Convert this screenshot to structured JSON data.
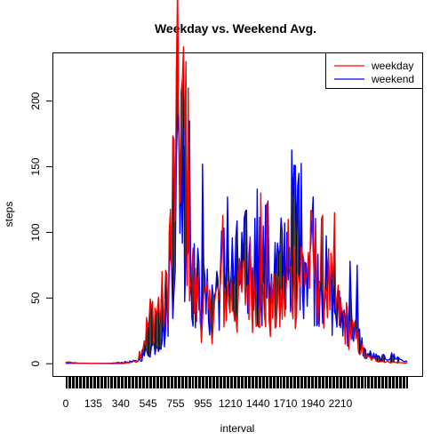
{
  "chart_data": {
    "type": "line",
    "title": "Weekday vs. Weekend Avg.",
    "xlabel": "interval",
    "ylabel": "steps",
    "ylim": [
      -8,
      235
    ],
    "y_ticks": [
      0,
      50,
      100,
      150,
      200
    ],
    "x_tick_labels": [
      "0",
      "135",
      "340",
      "545",
      "755",
      "955",
      "1210",
      "1440",
      "1710",
      "1940",
      "2210"
    ],
    "x_categories_count": 288,
    "grid": false,
    "legend_position": "top-right",
    "colors": {
      "weekday": "#ff0000",
      "weekend": "#0000ff",
      "connector": "#000000"
    },
    "series": [
      {
        "name": "weekday",
        "color": "#ff0000",
        "profile_x": [
          0,
          1,
          2,
          3,
          4,
          5,
          6,
          7,
          8,
          9,
          10,
          11,
          12,
          13,
          14,
          15,
          16,
          17,
          18,
          19,
          20,
          21,
          22,
          23,
          23.92
        ],
        "profile_y": [
          1.2,
          0.3,
          0.2,
          0.1,
          0.1,
          2,
          38,
          48,
          208,
          52,
          38,
          55,
          48,
          68,
          45,
          42,
          68,
          78,
          72,
          42,
          26,
          5,
          2,
          1,
          0.5
        ],
        "spikes": [
          [
            8.4,
            230
          ],
          [
            8.6,
            210
          ],
          [
            7.4,
            74
          ],
          [
            13.7,
            130
          ],
          [
            15.6,
            110
          ],
          [
            18.8,
            115
          ],
          [
            11.0,
            113
          ],
          [
            14.1,
            122
          ]
        ]
      },
      {
        "name": "weekend",
        "color": "#0000ff",
        "profile_x": [
          0,
          1,
          2,
          3,
          4,
          5,
          6,
          7,
          8,
          9,
          10,
          11,
          12,
          13,
          14,
          15,
          16,
          17,
          18,
          19,
          20,
          21,
          22,
          23,
          23.92
        ],
        "profile_y": [
          0.3,
          0.3,
          0.2,
          0.2,
          1,
          2,
          12,
          28,
          160,
          62,
          45,
          72,
          70,
          78,
          82,
          70,
          112,
          88,
          70,
          38,
          34,
          8,
          4,
          6,
          1
        ],
        "spikes": [
          [
            8.7,
            185
          ],
          [
            9.6,
            152
          ],
          [
            11.3,
            127
          ],
          [
            13.4,
            133
          ],
          [
            15.9,
            125
          ],
          [
            16.3,
            145
          ],
          [
            17.3,
            127
          ],
          [
            19.9,
            78
          ],
          [
            20.4,
            75
          ]
        ]
      }
    ]
  }
}
